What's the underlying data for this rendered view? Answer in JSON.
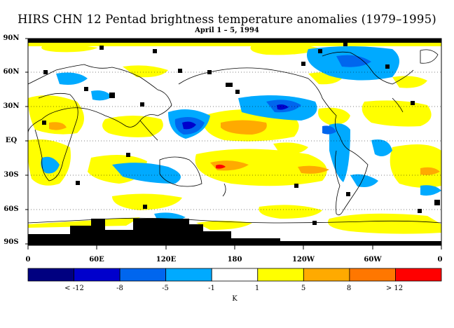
{
  "title": "HIRS CHN 12 Pentad brightness temperature anomalies (1979–1995)",
  "subtitle": "April 1 – 5, 1994",
  "lat_labels": [
    "90N",
    "60N",
    "30N",
    "EQ",
    "30S",
    "60S",
    "90S"
  ],
  "lon_labels": [
    "0",
    "60E",
    "120E",
    "180",
    "120W",
    "60W",
    "0"
  ],
  "colorbar": {
    "colors": [
      "#000080",
      "#0000cc",
      "#0066ee",
      "#00aaff",
      "#ffffff",
      "#ffff00",
      "#ffaa00",
      "#ff7700",
      "#ff0000"
    ],
    "labels": [
      "< -12",
      "-8",
      "-5",
      "-1",
      "1",
      "5",
      "8",
      "> 12"
    ],
    "unit": "K"
  },
  "colors": {
    "missing": "#000000",
    "coastline": "#000000",
    "background": "#ffffff"
  }
}
